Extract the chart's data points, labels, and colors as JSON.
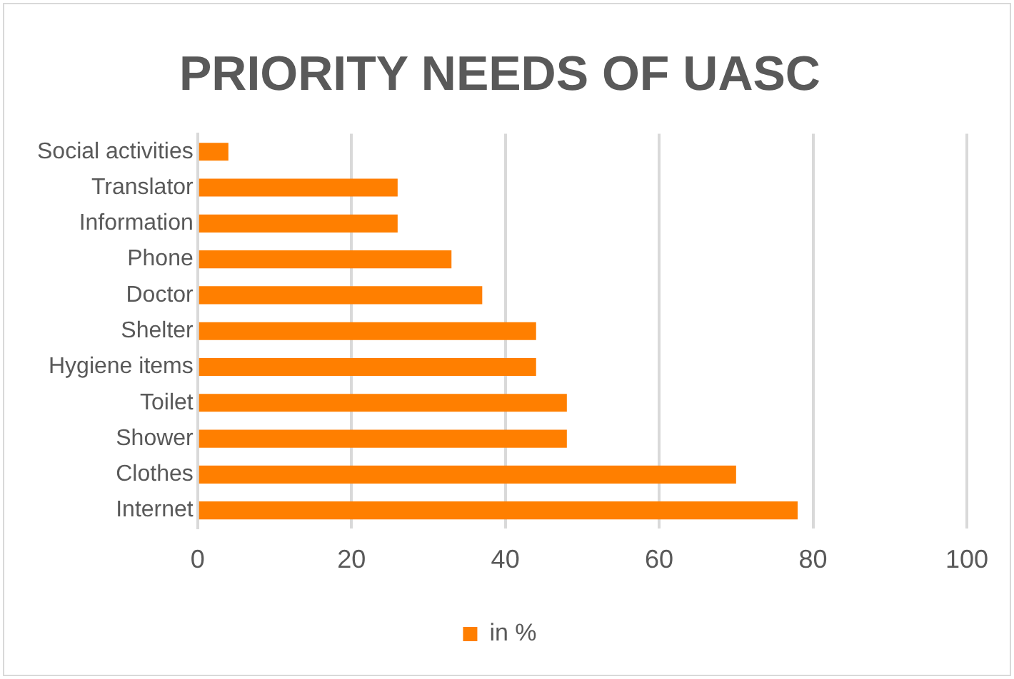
{
  "chart_data": {
    "type": "bar",
    "orientation": "horizontal",
    "title": "PRIORITY NEEDS OF UASC",
    "categories": [
      "Social activities",
      "Translator",
      "Information",
      "Phone",
      "Doctor",
      "Shelter",
      "Hygiene items",
      "Toilet",
      "Shower",
      "Clothes",
      "Internet"
    ],
    "series": [
      {
        "name": "in %",
        "color": "#ff7f00",
        "values": [
          4,
          26,
          26,
          33,
          37,
          44,
          44,
          48,
          48,
          70,
          78
        ]
      }
    ],
    "xlim": [
      0,
      100
    ],
    "xticks": [
      0,
      20,
      40,
      60,
      80,
      100
    ],
    "grid": "x",
    "legend": "bottom"
  }
}
